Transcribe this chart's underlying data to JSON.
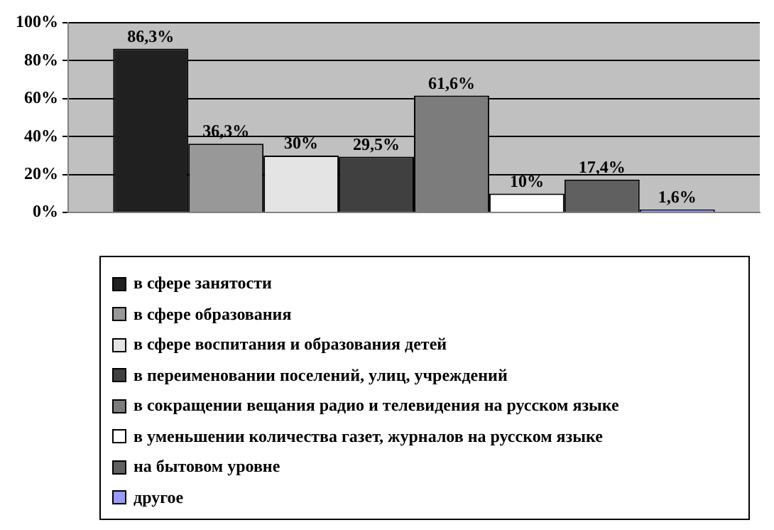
{
  "chart_data": {
    "type": "bar",
    "categories": [
      null
    ],
    "series": [
      {
        "name": "в сфере занятости",
        "color": "#202020",
        "values": [
          86.3
        ],
        "value_labels": [
          "86,3%"
        ]
      },
      {
        "name": "в сфере образования",
        "color": "#989898",
        "values": [
          36.3
        ],
        "value_labels": [
          "36,3%"
        ]
      },
      {
        "name": "в сфере воспитания и образования детей",
        "color": "#e4e4e4",
        "values": [
          30
        ],
        "value_labels": [
          "30%"
        ]
      },
      {
        "name": "в переименовании поселений, улиц, учреждений",
        "color": "#404040",
        "values": [
          29.5
        ],
        "value_labels": [
          "29,5%"
        ]
      },
      {
        "name": "в сокращении вещания радио и телевидения на русском языке",
        "color": "#7c7c7c",
        "values": [
          61.6
        ],
        "value_labels": [
          "61,6%"
        ]
      },
      {
        "name": "в уменьшении количества газет, журналов на русском языке",
        "color": "#ffffff",
        "values": [
          10
        ],
        "value_labels": [
          "10%"
        ]
      },
      {
        "name": "на бытовом уровне",
        "color": "#606060",
        "values": [
          17.4
        ],
        "value_labels": [
          "17,4%"
        ]
      },
      {
        "name": "другое",
        "color": "#9999ff",
        "values": [
          1.6
        ],
        "value_labels": [
          "1,6%"
        ]
      }
    ],
    "ylim": [
      0,
      100
    ],
    "yticks": [
      {
        "value": 0,
        "label": "0%"
      },
      {
        "value": 20,
        "label": "20%"
      },
      {
        "value": 40,
        "label": "40%"
      },
      {
        "value": 60,
        "label": "60%"
      },
      {
        "value": 80,
        "label": "80%"
      },
      {
        "value": 100,
        "label": "100%"
      }
    ],
    "grid": "y",
    "legend": "bottom"
  }
}
